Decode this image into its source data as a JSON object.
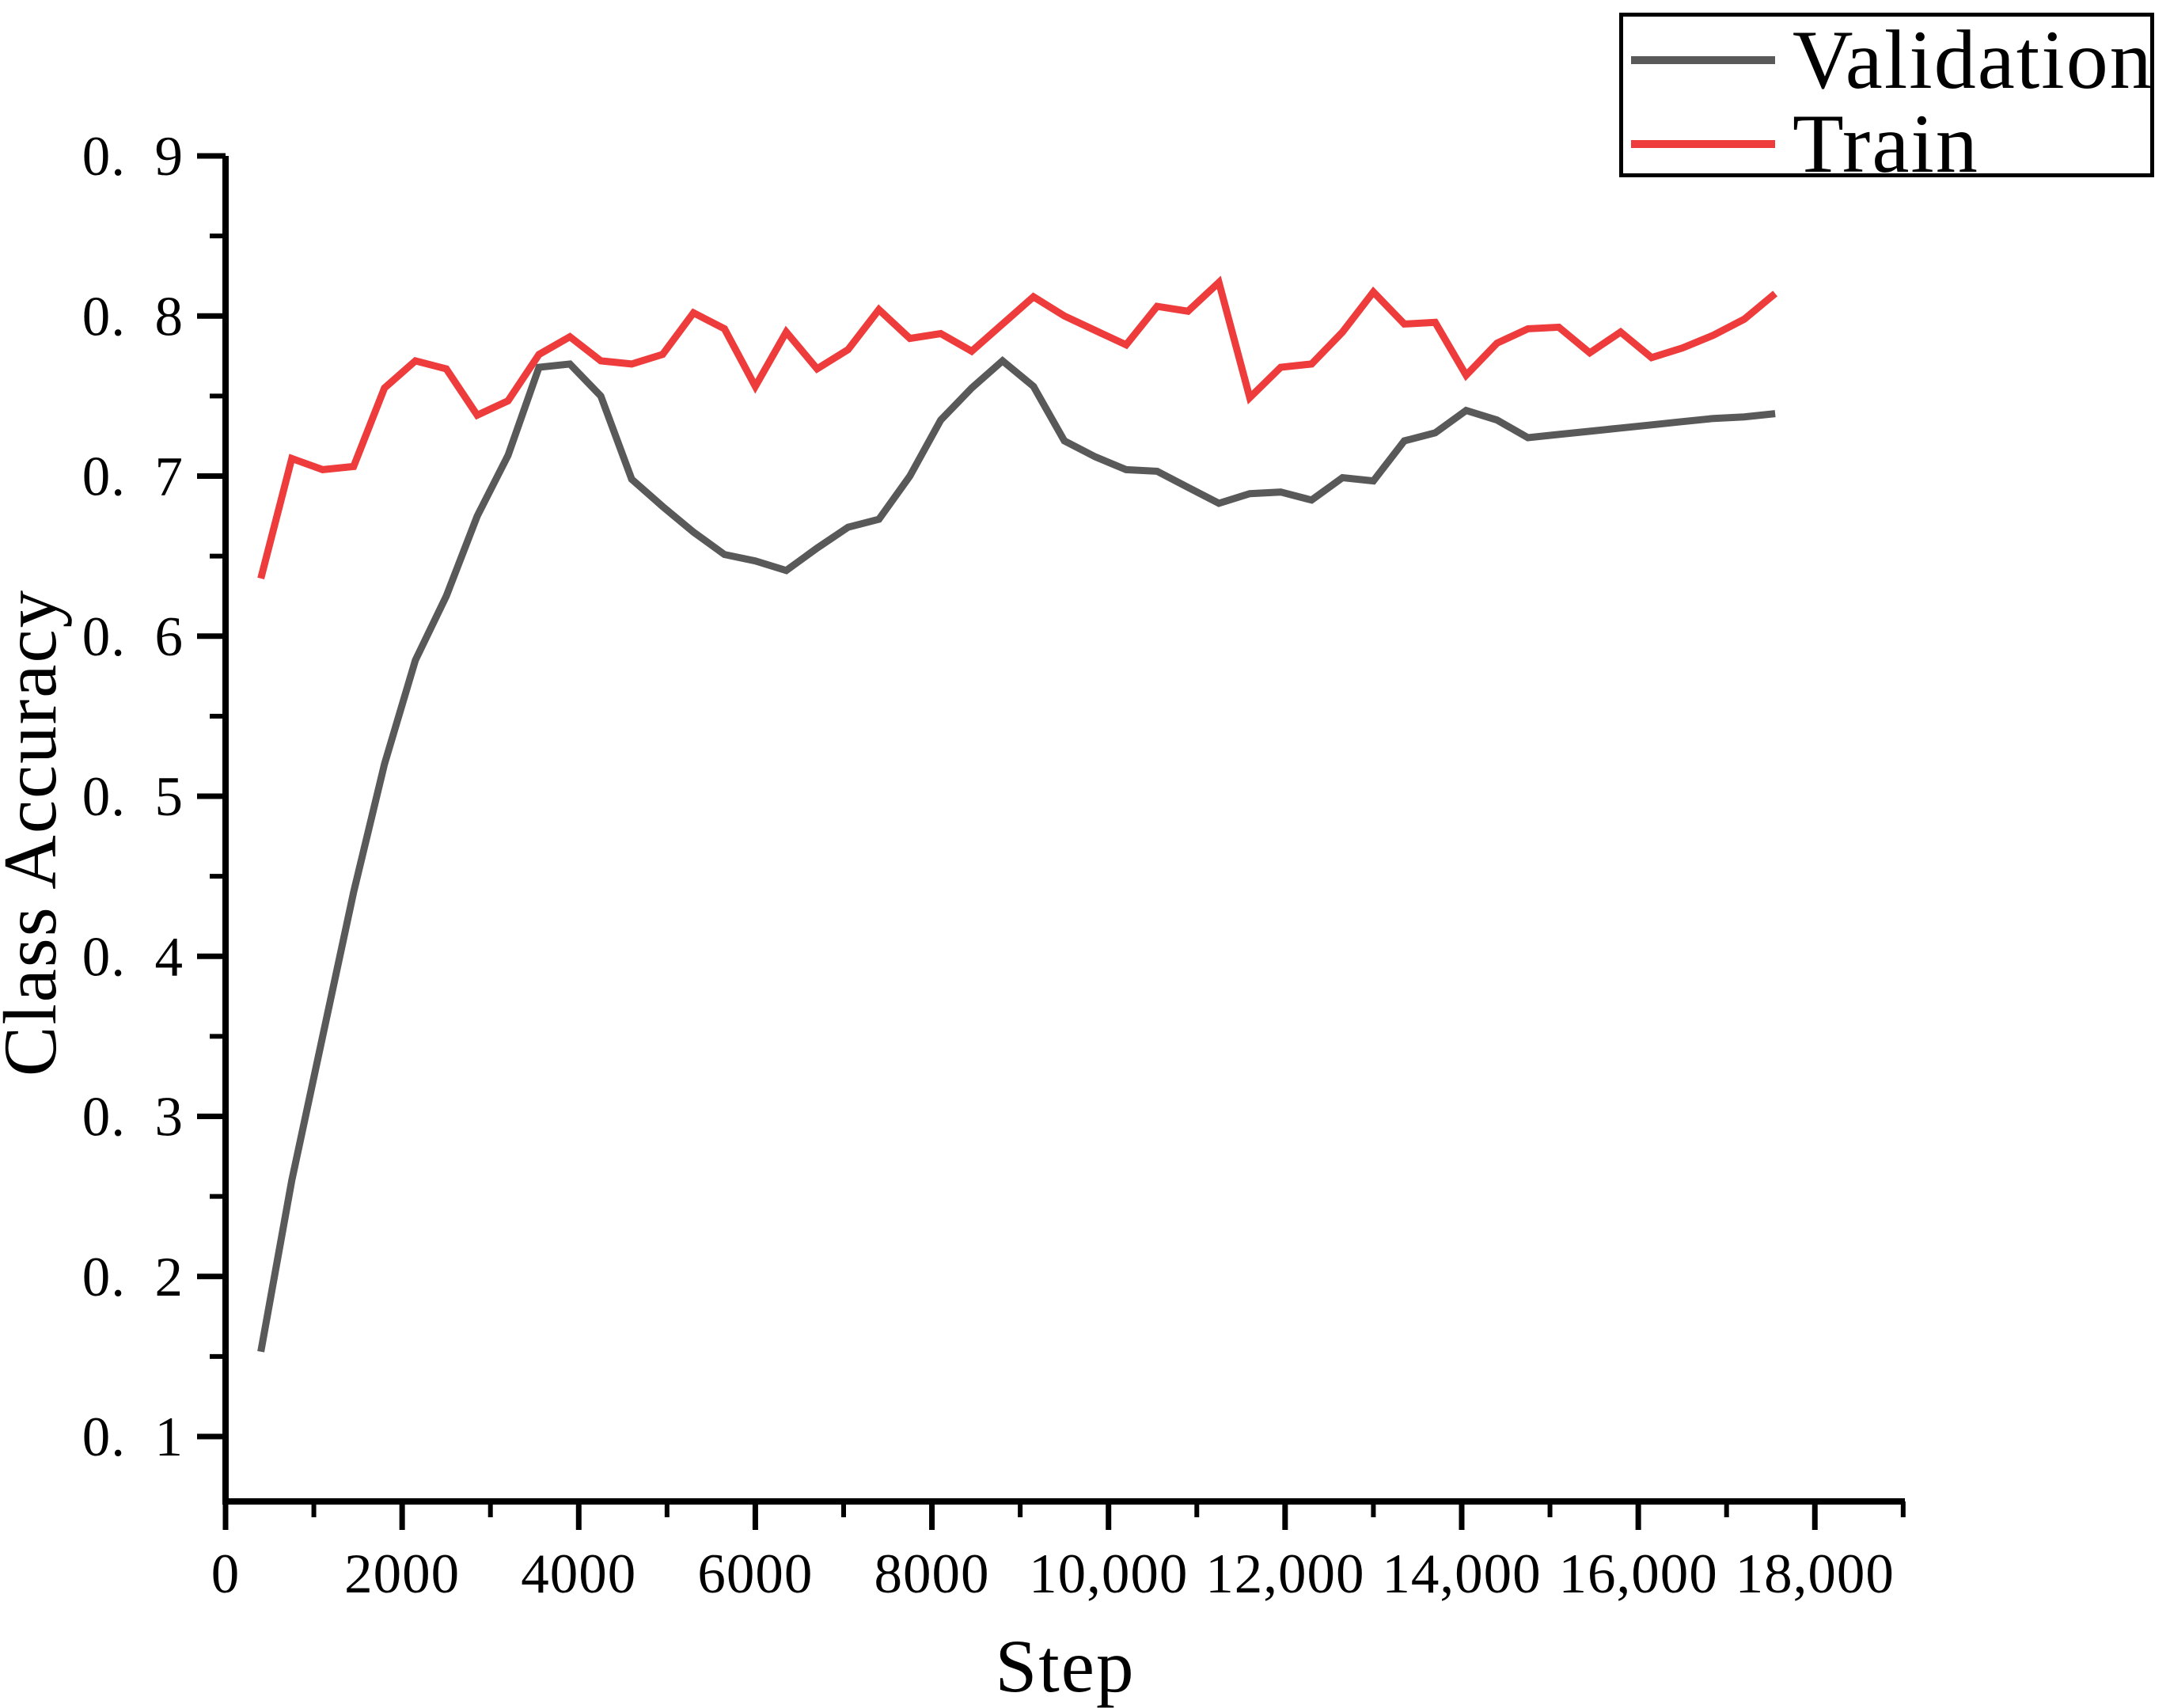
{
  "chart_data": {
    "type": "line",
    "title": "",
    "xlabel": "Step",
    "ylabel": "Class Accuracy",
    "xlim": [
      0,
      19000
    ],
    "ylim": [
      0.06,
      0.9
    ],
    "grid": false,
    "legend_position": "top-right",
    "axis_color": "#000000",
    "x_major_ticks": [
      0,
      2000,
      4000,
      6000,
      8000,
      10000,
      12000,
      14000,
      16000,
      18000
    ],
    "x_tick_labels": [
      "0",
      "2000",
      "4000",
      "6000",
      "8000",
      "10,000",
      "12,000",
      "14,000",
      "16,000",
      "18,000"
    ],
    "x_minor_tick_step": 1000,
    "y_major_ticks": [
      0.1,
      0.2,
      0.3,
      0.4,
      0.5,
      0.6,
      0.7,
      0.8,
      0.9
    ],
    "y_tick_labels": [
      "0.1",
      "0.2",
      "0.3",
      "0.4",
      "0.5",
      "0.6",
      "0.7",
      "0.8",
      "0.9"
    ],
    "y_minor_tick_step": 0.05,
    "series": [
      {
        "name": "Validation",
        "color": "#595959",
        "x": [
          400,
          750,
          1100,
          1450,
          1800,
          2150,
          2500,
          2850,
          3200,
          3550,
          3900,
          4250,
          4600,
          4950,
          5300,
          5650,
          6000,
          6350,
          6700,
          7050,
          7400,
          7750,
          8100,
          8450,
          8800,
          9150,
          9500,
          9850,
          10200,
          10550,
          10900,
          11250,
          11600,
          11950,
          12300,
          12650,
          13000,
          13350,
          13700,
          14050,
          14400,
          14750,
          15100,
          15450,
          15800,
          16150,
          16500,
          16850,
          17200,
          17550
        ],
        "y": [
          0.153,
          0.26,
          0.35,
          0.44,
          0.52,
          0.585,
          0.625,
          0.675,
          0.713,
          0.768,
          0.77,
          0.75,
          0.698,
          0.681,
          0.665,
          0.651,
          0.647,
          0.641,
          0.655,
          0.668,
          0.673,
          0.7,
          0.735,
          0.755,
          0.772,
          0.756,
          0.722,
          0.712,
          0.704,
          0.703,
          0.693,
          0.683,
          0.689,
          0.69,
          0.685,
          0.699,
          0.697,
          0.722,
          0.727,
          0.741,
          0.735,
          0.724,
          0.726,
          0.728,
          0.73,
          0.732,
          0.734,
          0.736,
          0.737,
          0.739
        ]
      },
      {
        "name": "Train",
        "color": "#ee3b3b",
        "x": [
          400,
          750,
          1100,
          1450,
          1800,
          2150,
          2500,
          2850,
          3200,
          3550,
          3900,
          4250,
          4600,
          4950,
          5300,
          5650,
          6000,
          6350,
          6700,
          7050,
          7400,
          7750,
          8100,
          8450,
          8800,
          9150,
          9500,
          9850,
          10200,
          10550,
          10900,
          11250,
          11600,
          11950,
          12300,
          12650,
          13000,
          13350,
          13700,
          14050,
          14400,
          14750,
          15100,
          15450,
          15800,
          16150,
          16500,
          16850,
          17200,
          17550
        ],
        "y": [
          0.636,
          0.711,
          0.704,
          0.706,
          0.755,
          0.772,
          0.767,
          0.738,
          0.747,
          0.776,
          0.787,
          0.772,
          0.77,
          0.776,
          0.802,
          0.792,
          0.756,
          0.79,
          0.767,
          0.779,
          0.804,
          0.786,
          0.789,
          0.778,
          0.795,
          0.812,
          0.8,
          0.791,
          0.782,
          0.806,
          0.803,
          0.821,
          0.749,
          0.768,
          0.77,
          0.79,
          0.815,
          0.795,
          0.796,
          0.763,
          0.783,
          0.792,
          0.793,
          0.777,
          0.79,
          0.774,
          0.78,
          0.788,
          0.798,
          0.814
        ]
      }
    ]
  },
  "legend": {
    "items": [
      {
        "label": "Validation",
        "color": "#595959"
      },
      {
        "label": "Train",
        "color": "#ee3b3b"
      }
    ]
  }
}
